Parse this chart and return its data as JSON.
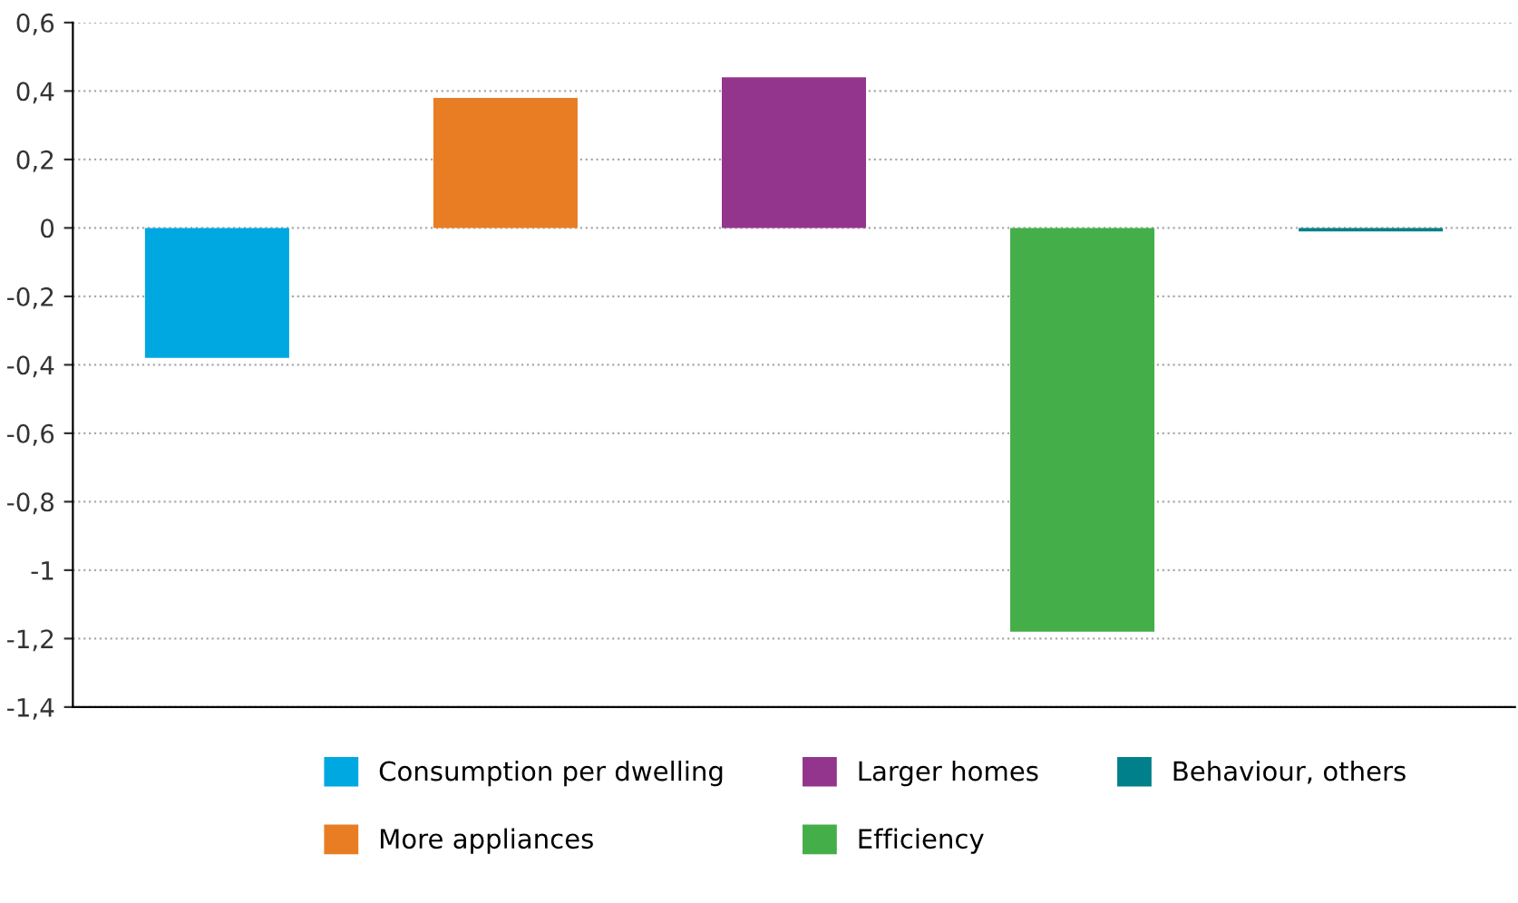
{
  "chart_data": {
    "type": "bar",
    "categories": [
      null,
      null,
      null,
      null,
      null
    ],
    "series": [
      {
        "name": "Consumption per dwelling",
        "color": "#00a8e1",
        "values": [
          -0.38,
          null,
          null,
          null,
          null
        ]
      },
      {
        "name": "More appliances",
        "color": "#e87d24",
        "values": [
          null,
          0.38,
          null,
          null,
          null
        ]
      },
      {
        "name": "Larger homes",
        "color": "#93358d",
        "values": [
          null,
          null,
          0.44,
          null,
          null
        ]
      },
      {
        "name": "Efficiency",
        "color": "#44ae49",
        "values": [
          null,
          null,
          null,
          -1.18,
          null
        ]
      },
      {
        "name": "Behaviour, others",
        "color": "#00808a",
        "values": [
          null,
          null,
          null,
          null,
          -0.01
        ]
      }
    ],
    "ylim": [
      -1.4,
      0.6
    ],
    "yticks": [
      {
        "value": 0.6,
        "label": "0,6"
      },
      {
        "value": 0.4,
        "label": "0,4"
      },
      {
        "value": 0.2,
        "label": "0,2"
      },
      0,
      {
        "value": -0.2,
        "label": "-0,2"
      },
      {
        "value": -0.4,
        "label": "-0,4"
      },
      {
        "value": -0.6,
        "label": "-0,6"
      },
      {
        "value": -0.8,
        "label": "-0,8"
      },
      -1,
      {
        "value": -1.2,
        "label": "-1,2"
      },
      {
        "value": -1.4,
        "label": "-1,4"
      }
    ],
    "grid": "y",
    "legend": "bottom",
    "tick_labels": "y"
  }
}
